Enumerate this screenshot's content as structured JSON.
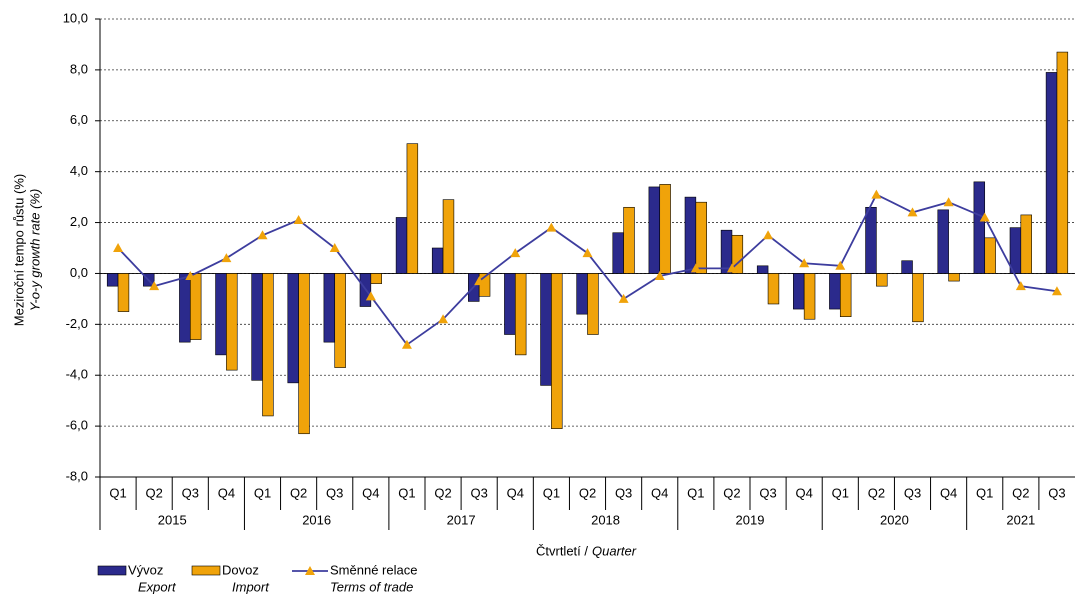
{
  "chart_data": {
    "type": "bar",
    "y_label": "Meziroční tempo růstu (%)",
    "y_label_en": "Y-o-y growth rate (%)",
    "x_label": "Čtvrtletí /",
    "x_label_en": "Quarter",
    "categories": [
      "Q1",
      "Q2",
      "Q3",
      "Q4",
      "Q1",
      "Q2",
      "Q3",
      "Q4",
      "Q1",
      "Q2",
      "Q3",
      "Q4",
      "Q1",
      "Q2",
      "Q3",
      "Q4",
      "Q1",
      "Q2",
      "Q3",
      "Q4",
      "Q1",
      "Q2",
      "Q3",
      "Q4",
      "Q1",
      "Q2",
      "Q3"
    ],
    "year_groups": [
      "2015",
      "2016",
      "2017",
      "2018",
      "2019",
      "2020",
      "2021"
    ],
    "series": [
      {
        "name": "Vývoz",
        "name_en": "Export",
        "kind": "bar",
        "color": "#2b2a8c",
        "values": [
          -0.5,
          -0.5,
          -2.7,
          -3.2,
          -4.2,
          -4.3,
          -2.7,
          -1.3,
          2.2,
          1.0,
          -1.1,
          -2.4,
          -4.4,
          -1.6,
          1.6,
          3.4,
          3.0,
          1.7,
          0.3,
          -1.4,
          -1.4,
          2.6,
          0.5,
          2.5,
          3.6,
          1.8,
          7.9
        ]
      },
      {
        "name": "Dovoz",
        "name_en": "Import",
        "kind": "bar",
        "color": "#f0a30a",
        "values": [
          -1.5,
          0.0,
          -2.6,
          -3.8,
          -5.6,
          -6.3,
          -3.7,
          -0.4,
          5.1,
          2.9,
          -0.9,
          -3.2,
          -6.1,
          -2.4,
          2.6,
          3.5,
          2.8,
          1.5,
          -1.2,
          -1.8,
          -1.7,
          -0.5,
          -1.9,
          -0.3,
          1.4,
          2.3,
          8.7
        ]
      },
      {
        "name": "Směnné relace",
        "name_en": "Terms of trade",
        "kind": "line",
        "color": "#3d3d9e",
        "marker_color": "#f0a30a",
        "values": [
          1.0,
          -0.5,
          -0.1,
          0.6,
          1.5,
          2.1,
          1.0,
          -0.9,
          -2.8,
          -1.8,
          -0.3,
          0.8,
          1.8,
          0.8,
          -1.0,
          -0.1,
          0.2,
          0.2,
          1.5,
          0.4,
          0.3,
          3.1,
          2.4,
          2.8,
          2.2,
          -0.5,
          -0.7
        ]
      }
    ],
    "ylim": [
      -8,
      10
    ],
    "yticks": [
      {
        "value": -8,
        "label": "-8,0"
      },
      {
        "value": -6,
        "label": "-6,0"
      },
      {
        "value": -4,
        "label": "-4,0"
      },
      {
        "value": -2,
        "label": "-2,0"
      },
      {
        "value": 0,
        "label": "0,0"
      },
      {
        "value": 2,
        "label": "2,0"
      },
      {
        "value": 4,
        "label": "4,0"
      },
      {
        "value": 6,
        "label": "6,0"
      },
      {
        "value": 8,
        "label": "8,0"
      },
      {
        "value": 10,
        "label": "10,0"
      }
    ],
    "grid": true
  }
}
